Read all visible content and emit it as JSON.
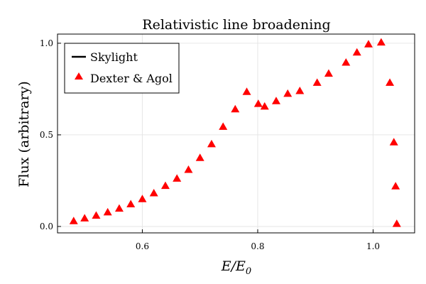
{
  "chart_data": {
    "type": "scatter",
    "title": "Relativistic line broadening",
    "xlabel": {
      "main": "E/E",
      "sub": "0"
    },
    "ylabel": "Flux (arbitrary)",
    "xlim": [
      0.453,
      1.072
    ],
    "ylim": [
      -0.035,
      1.05
    ],
    "x_ticks": [
      {
        "value": 0.6,
        "label": "0.6"
      },
      {
        "value": 0.8,
        "label": "0.8"
      },
      {
        "value": 1.0,
        "label": "1.0"
      }
    ],
    "y_ticks": [
      {
        "value": 0.0,
        "label": "0.0"
      },
      {
        "value": 0.5,
        "label": "0.5"
      },
      {
        "value": 1.0,
        "label": "1.0"
      }
    ],
    "grid": true,
    "legend": {
      "placement": "top-left"
    },
    "series": [
      {
        "name": "Skylight",
        "kind": "line",
        "color": "#000000",
        "x": [],
        "y": []
      },
      {
        "name": "Dexter & Agol",
        "kind": "scatter",
        "marker": "triangle",
        "color": "#ff0000",
        "x": [
          0.481,
          0.5,
          0.52,
          0.54,
          0.56,
          0.58,
          0.6,
          0.62,
          0.64,
          0.66,
          0.68,
          0.7,
          0.72,
          0.74,
          0.761,
          0.781,
          0.801,
          0.812,
          0.832,
          0.852,
          0.873,
          0.903,
          0.923,
          0.953,
          0.972,
          0.992,
          1.014,
          1.029,
          1.036,
          1.039,
          1.041
        ],
        "y": [
          0.03,
          0.045,
          0.06,
          0.078,
          0.098,
          0.122,
          0.15,
          0.182,
          0.222,
          0.262,
          0.31,
          0.375,
          0.45,
          0.545,
          0.64,
          0.735,
          0.67,
          0.655,
          0.685,
          0.725,
          0.74,
          0.785,
          0.835,
          0.895,
          0.95,
          0.995,
          1.005,
          0.785,
          0.46,
          0.22,
          0.015
        ]
      }
    ]
  }
}
